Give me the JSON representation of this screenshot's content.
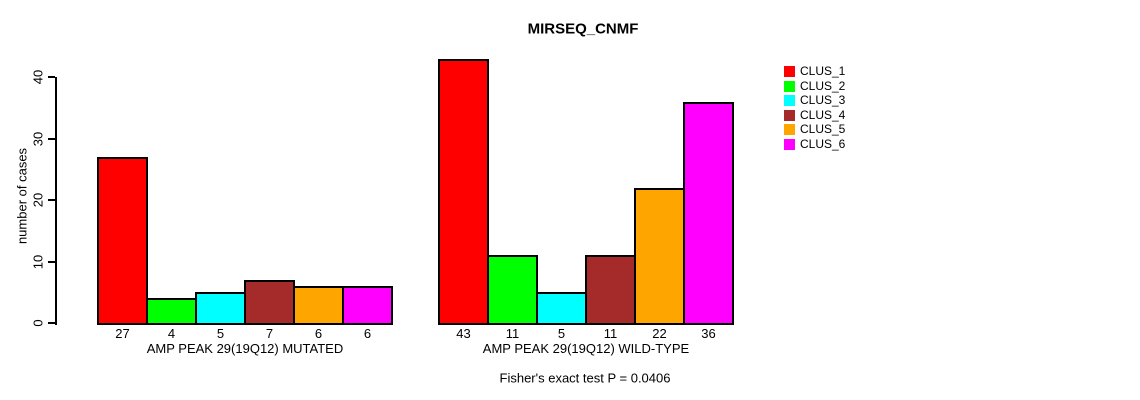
{
  "title": "MIRSEQ_CNMF",
  "chart_data": {
    "type": "bar",
    "title": "MIRSEQ_CNMF",
    "ylabel": "number of cases",
    "ylim": [
      0,
      40
    ],
    "yticks": [
      0,
      10,
      20,
      30,
      40
    ],
    "grid": false,
    "legend_position": "right-top",
    "categories": [
      "CLUS_1",
      "CLUS_2",
      "CLUS_3",
      "CLUS_4",
      "CLUS_5",
      "CLUS_6"
    ],
    "colors": [
      "#ff0000",
      "#00ff00",
      "#00ffff",
      "#a52a2a",
      "#ffa500",
      "#ff00ff"
    ],
    "panels": [
      {
        "xlabel": "AMP PEAK 29(19Q12) MUTATED",
        "values": [
          27,
          4,
          5,
          7,
          6,
          6
        ]
      },
      {
        "xlabel": "AMP PEAK 29(19Q12) WILD-TYPE",
        "values": [
          43,
          11,
          5,
          11,
          22,
          36
        ]
      }
    ],
    "annotation": "Fisher's exact test P = 0.0406"
  }
}
